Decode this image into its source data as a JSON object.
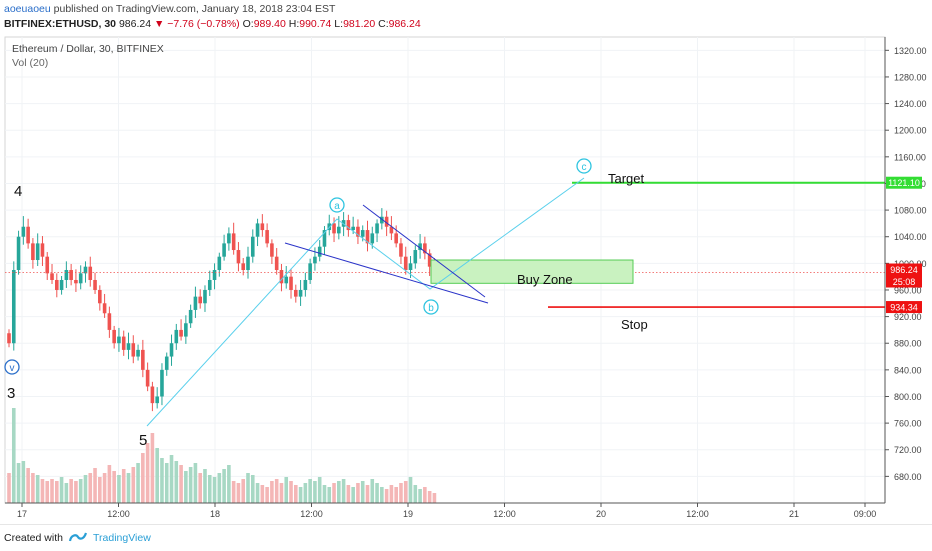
{
  "header": {
    "user": "aoeuaoeu",
    "published": "published on TradingView.com, January 18, 2018 23:04 EST",
    "symbol": "BITFINEX:ETHUSD, 30",
    "last": "986.24",
    "change": "▼ −7.76 (−0.78%)",
    "ohlc": [
      {
        "label": "O:",
        "value": "989.40"
      },
      {
        "label": "H:",
        "value": "990.74"
      },
      {
        "label": "L:",
        "value": "981.20"
      },
      {
        "label": "C:",
        "value": "986.24"
      }
    ]
  },
  "legend": {
    "title": "Ethereum / Dollar, 30, BITFINEX",
    "indicator": "Vol (20)"
  },
  "colors": {
    "up": "#26a69a",
    "down": "#ef5350",
    "volume_up": "#a7d8c4",
    "volume_down": "#f4b6b6",
    "wave_line": "#5ad0ec",
    "wedge_line": "#2a33c8",
    "target": "#33dd33",
    "stop": "#ee1111",
    "buy_zone_fill": "#c9f2c0",
    "buy_zone_border": "#55cc55"
  },
  "chart_data": {
    "type": "candlestick",
    "y_axis_ticks": [
      "1320.00",
      "1280.00",
      "1240.00",
      "1200.00",
      "1160.00",
      "1120.00",
      "1080.00",
      "1040.00",
      "1000.00",
      "960.00",
      "920.00",
      "880.00",
      "840.00",
      "800.00",
      "760.00",
      "720.00",
      "680.00"
    ],
    "x_axis_ticks": [
      "17",
      "12:00",
      "18",
      "12:00",
      "19",
      "12:00",
      "20",
      "12:00",
      "21",
      "09:00"
    ],
    "price_tags": [
      {
        "value": "1121.10",
        "color": "#33dd33"
      },
      {
        "value": "986.24",
        "color": "#ee1111"
      },
      {
        "value": "25:08",
        "color": "#ee1111"
      },
      {
        "value": "934.34",
        "color": "#ee1111"
      }
    ],
    "ylim": [
      640,
      1340
    ],
    "current_price": 986.24,
    "target_level": 1121.1,
    "stop_level": 934.34,
    "buy_zone": [
      970,
      1005
    ],
    "annotations": [
      {
        "text": "Target",
        "kind": "label"
      },
      {
        "text": "Stop",
        "kind": "label"
      },
      {
        "text": "Buy Zone",
        "kind": "label"
      },
      {
        "text": "4",
        "kind": "wave"
      },
      {
        "text": "3",
        "kind": "wave"
      },
      {
        "text": "5",
        "kind": "wave"
      },
      {
        "text": "a",
        "kind": "circle"
      },
      {
        "text": "b",
        "kind": "circle"
      },
      {
        "text": "c",
        "kind": "circle"
      },
      {
        "text": "v",
        "kind": "circle"
      }
    ],
    "candles_close": [
      880,
      990,
      1040,
      1055,
      1030,
      1005,
      1030,
      1010,
      985,
      975,
      960,
      975,
      990,
      975,
      970,
      985,
      995,
      975,
      960,
      940,
      925,
      900,
      880,
      890,
      870,
      880,
      860,
      870,
      840,
      815,
      790,
      800,
      840,
      860,
      880,
      900,
      890,
      910,
      930,
      950,
      940,
      960,
      975,
      990,
      1010,
      1030,
      1045,
      1020,
      1000,
      990,
      1010,
      1040,
      1060,
      1050,
      1030,
      1010,
      990,
      970,
      980,
      960,
      950,
      960,
      975,
      1000,
      1010,
      1025,
      1050,
      1060,
      1045,
      1055,
      1065,
      1050,
      1055,
      1040,
      1050,
      1030,
      1045,
      1060,
      1070,
      1055,
      1045,
      1030,
      1010,
      990,
      1000,
      1020,
      1030,
      1015,
      995,
      986
    ],
    "volumes": [
      30,
      95,
      40,
      42,
      35,
      30,
      28,
      24,
      22,
      24,
      22,
      26,
      20,
      24,
      22,
      24,
      28,
      30,
      35,
      26,
      30,
      38,
      32,
      28,
      34,
      30,
      36,
      40,
      50,
      60,
      70,
      55,
      45,
      40,
      48,
      42,
      38,
      32,
      36,
      40,
      30,
      34,
      28,
      26,
      30,
      34,
      38,
      22,
      20,
      24,
      30,
      28,
      20,
      18,
      16,
      22,
      24,
      20,
      26,
      22,
      18,
      16,
      20,
      24,
      22,
      26,
      18,
      16,
      20,
      22,
      24,
      18,
      16,
      20,
      22,
      18,
      24,
      20,
      16,
      14,
      18,
      16,
      20,
      22,
      26,
      18,
      14,
      16,
      12,
      10
    ]
  },
  "footer": {
    "created_with": "Created with",
    "brand": "TradingView"
  }
}
